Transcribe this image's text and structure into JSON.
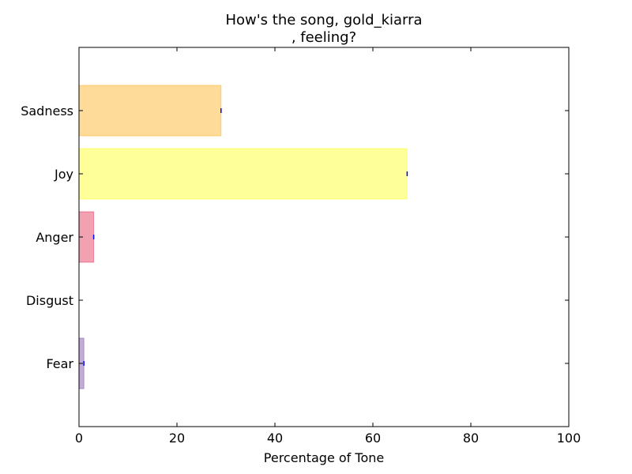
{
  "chart_data": {
    "type": "bar",
    "orientation": "horizontal",
    "title_lines": [
      "How's the song, gold_kiarra",
      ", feeling?"
    ],
    "xlabel": "Percentage of Tone",
    "ylabel": "",
    "xlim": [
      0,
      100
    ],
    "xticks": [
      0,
      20,
      40,
      60,
      80,
      100
    ],
    "categories": [
      "Sadness",
      "Joy",
      "Anger",
      "Disgust",
      "Fear"
    ],
    "values": [
      29,
      67,
      3,
      0,
      1
    ],
    "colors": [
      "#FFA500",
      "#FFFF00",
      "#DC143C",
      "#228B22",
      "#663399"
    ],
    "error_bar_color": "#0000FF",
    "grid": false,
    "legend": "none"
  }
}
